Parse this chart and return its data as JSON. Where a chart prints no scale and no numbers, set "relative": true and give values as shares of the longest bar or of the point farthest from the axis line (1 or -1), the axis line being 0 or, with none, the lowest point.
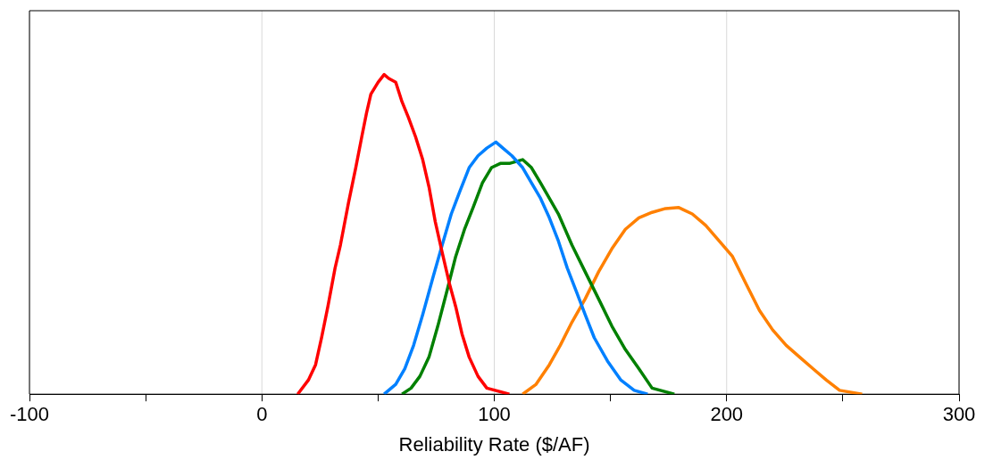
{
  "chart_data": {
    "type": "line",
    "relative": true,
    "xlabel": "Reliability Rate ($/AF)",
    "xlim": [
      -100,
      300
    ],
    "xticks": [
      -100,
      {
        "value": -50,
        "label": null
      },
      0,
      {
        "value": 50,
        "label": null
      },
      100,
      {
        "value": 150,
        "label": null
      },
      200,
      {
        "value": 250,
        "label": null
      },
      300
    ],
    "grid": "x",
    "legend": false,
    "marker": "none",
    "line_style": "solid",
    "series": [
      {
        "color": "#ff0000",
        "x": [
          15.4,
          20.0,
          23.1,
          25.7,
          28.4,
          31.5,
          33.8,
          37.3,
          40.4,
          43.0,
          45.0,
          46.9,
          50.0,
          52.6,
          54.6,
          57.6,
          60.3,
          63.0,
          66.1,
          69.2,
          71.9,
          74.6,
          77.6,
          80.7,
          83.4,
          86.1,
          89.2,
          93.0,
          96.8,
          106.5
        ],
        "values": [
          0,
          0.044,
          0.092,
          0.177,
          0.274,
          0.395,
          0.467,
          0.6,
          0.709,
          0.806,
          0.879,
          0.939,
          0.976,
          1,
          0.988,
          0.976,
          0.915,
          0.867,
          0.806,
          0.734,
          0.649,
          0.54,
          0.443,
          0.346,
          0.274,
          0.189,
          0.116,
          0.056,
          0.019,
          0
        ]
      },
      {
        "color": "#0080ff",
        "x": [
          52.6,
          57.6,
          61.5,
          65.3,
          69.2,
          73.8,
          77.6,
          81.5,
          85.3,
          89.2,
          93.0,
          96.8,
          100.7,
          103.7,
          107.6,
          112.2,
          116.0,
          119.9,
          123.7,
          127.6,
          131.4,
          135.3,
          139.1,
          143.0,
          148.7,
          154.5,
          160.2,
          166.0
        ],
        "values": [
          0,
          0.031,
          0.08,
          0.153,
          0.249,
          0.37,
          0.467,
          0.564,
          0.637,
          0.709,
          0.746,
          0.77,
          0.789,
          0.77,
          0.746,
          0.709,
          0.661,
          0.613,
          0.552,
          0.479,
          0.395,
          0.322,
          0.249,
          0.177,
          0.104,
          0.044,
          0.012,
          0
        ]
      },
      {
        "color": "#008000",
        "x": [
          60.3,
          64.2,
          68.0,
          71.9,
          75.7,
          79.6,
          83.4,
          87.2,
          91.1,
          94.9,
          98.8,
          102.6,
          106.5,
          112.2,
          116.0,
          119.9,
          123.7,
          127.6,
          133.4,
          139.1,
          144.9,
          150.6,
          156.4,
          162.2,
          167.9,
          177.5
        ],
        "values": [
          0,
          0.019,
          0.056,
          0.116,
          0.213,
          0.322,
          0.431,
          0.516,
          0.588,
          0.661,
          0.709,
          0.722,
          0.722,
          0.734,
          0.709,
          0.661,
          0.613,
          0.564,
          0.467,
          0.383,
          0.298,
          0.213,
          0.14,
          0.08,
          0.019,
          0
        ]
      },
      {
        "color": "#ff8000",
        "x": [
          112.2,
          118.0,
          123.7,
          128.4,
          133.4,
          139.1,
          144.9,
          150.6,
          156.4,
          162.2,
          167.9,
          173.7,
          179.4,
          185.2,
          191.0,
          196.8,
          202.5,
          208.3,
          214.1,
          219.8,
          225.6,
          231.4,
          237.1,
          242.9,
          248.6,
          258.3
        ],
        "values": [
          0,
          0.031,
          0.092,
          0.153,
          0.225,
          0.298,
          0.383,
          0.455,
          0.516,
          0.552,
          0.569,
          0.581,
          0.584,
          0.564,
          0.528,
          0.479,
          0.431,
          0.346,
          0.262,
          0.201,
          0.153,
          0.116,
          0.08,
          0.044,
          0.012,
          0
        ]
      }
    ]
  }
}
